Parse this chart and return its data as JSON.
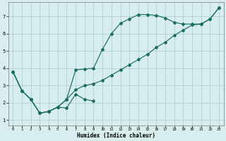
{
  "xlabel": "Humidex (Indice chaleur)",
  "bg_color": "#d8eeee",
  "grid_color": "#b0d0d0",
  "line_color": "#1a6e5e",
  "xlim": [
    -0.5,
    23.5
  ],
  "ylim": [
    0.7,
    7.8
  ],
  "xticks": [
    0,
    1,
    2,
    3,
    4,
    5,
    6,
    7,
    8,
    9,
    10,
    11,
    12,
    13,
    14,
    15,
    16,
    17,
    18,
    19,
    20,
    21,
    22,
    23
  ],
  "yticks": [
    1,
    2,
    3,
    4,
    5,
    6,
    7
  ],
  "curve_upper_x": [
    0,
    1,
    2,
    3,
    4,
    5,
    6,
    7,
    8,
    9,
    10,
    11,
    12,
    13,
    14,
    15,
    16,
    17,
    18,
    19,
    20,
    21,
    22,
    23
  ],
  "curve_upper_y": [
    3.8,
    2.7,
    2.2,
    1.4,
    1.5,
    1.75,
    2.2,
    3.9,
    3.95,
    4.0,
    5.1,
    6.0,
    6.6,
    6.85,
    7.1,
    7.1,
    7.05,
    6.9,
    6.65,
    6.55,
    6.55,
    6.55,
    6.85,
    7.5
  ],
  "curve_linear_x": [
    0,
    1,
    2,
    3,
    4,
    5,
    6,
    7,
    8,
    9,
    10,
    11,
    12,
    13,
    14,
    15,
    16,
    17,
    18,
    19,
    20,
    21,
    22,
    23
  ],
  "curve_linear_y": [
    3.8,
    2.7,
    2.2,
    1.4,
    1.5,
    1.75,
    2.2,
    2.75,
    3.0,
    3.1,
    3.3,
    3.6,
    3.9,
    4.2,
    4.5,
    4.8,
    5.2,
    5.5,
    5.9,
    6.2,
    6.5,
    6.55,
    6.85,
    7.5
  ],
  "curve_lower_x": [
    0,
    1,
    2,
    3,
    4,
    5,
    6,
    7,
    8,
    9
  ],
  "curve_lower_y": [
    3.8,
    2.7,
    2.2,
    1.4,
    1.5,
    1.75,
    1.7,
    2.5,
    2.2,
    2.1
  ]
}
